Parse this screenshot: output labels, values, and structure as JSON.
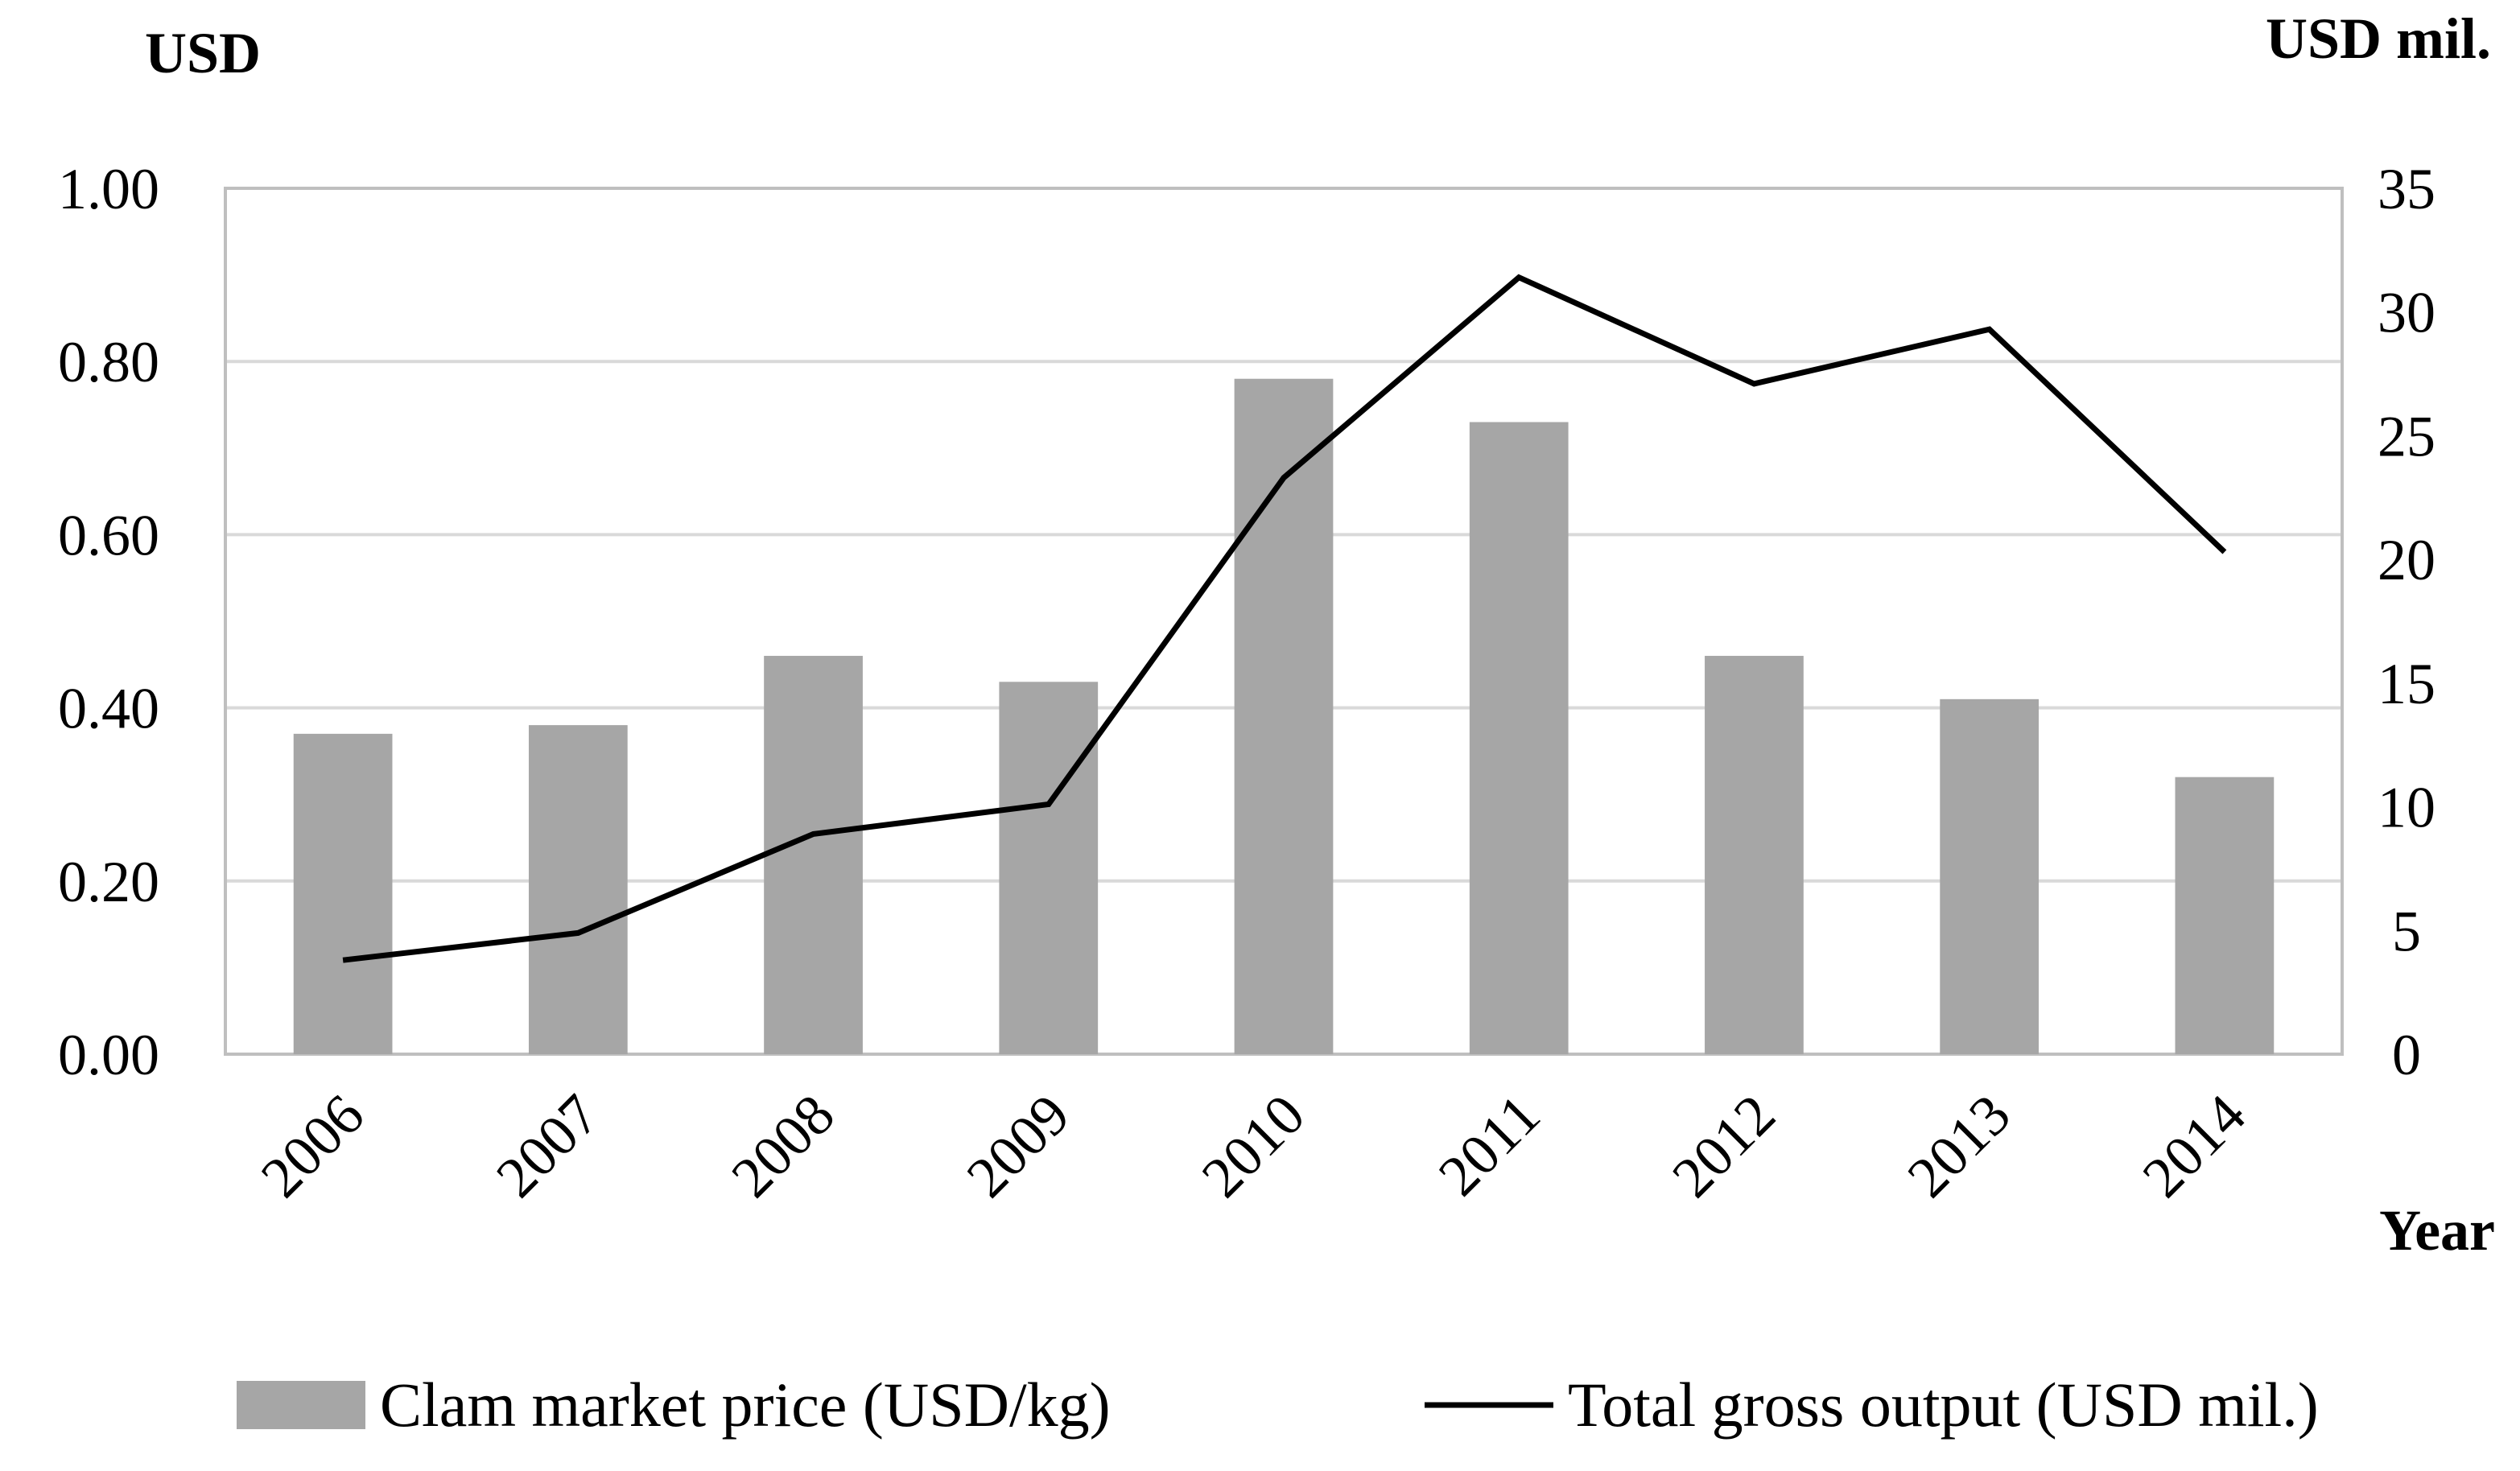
{
  "colors": {
    "bar": "#a6a6a6",
    "line": "#000000",
    "grid": "#d9d9d9",
    "frame": "#bfbfbf"
  },
  "chart_data": {
    "type": "bar+line",
    "categories": [
      "2006",
      "2007",
      "2008",
      "2009",
      "2010",
      "2011",
      "2012",
      "2013",
      "2014"
    ],
    "series": [
      {
        "name": "Clam market price (USD/kg)",
        "type": "bar",
        "axis": "left",
        "values": [
          0.37,
          0.38,
          0.46,
          0.43,
          0.78,
          0.73,
          0.46,
          0.41,
          0.32
        ]
      },
      {
        "name": "Total gross output (USD mil.)",
        "type": "line",
        "axis": "right",
        "values": [
          3.8,
          4.9,
          8.9,
          10.1,
          23.3,
          31.4,
          27.1,
          29.3,
          20.3
        ]
      }
    ],
    "left_axis": {
      "label": "USD",
      "min": 0,
      "max": 1.0,
      "ticks": [
        "0.00",
        "0.20",
        "0.40",
        "0.60",
        "0.80",
        "1.00"
      ]
    },
    "right_axis": {
      "label": "USD mil.",
      "min": 0,
      "max": 35,
      "ticks": [
        "0",
        "5",
        "10",
        "15",
        "20",
        "25",
        "30",
        "35"
      ]
    },
    "xlabel": "Year",
    "grid": true,
    "legend_position": "bottom"
  }
}
